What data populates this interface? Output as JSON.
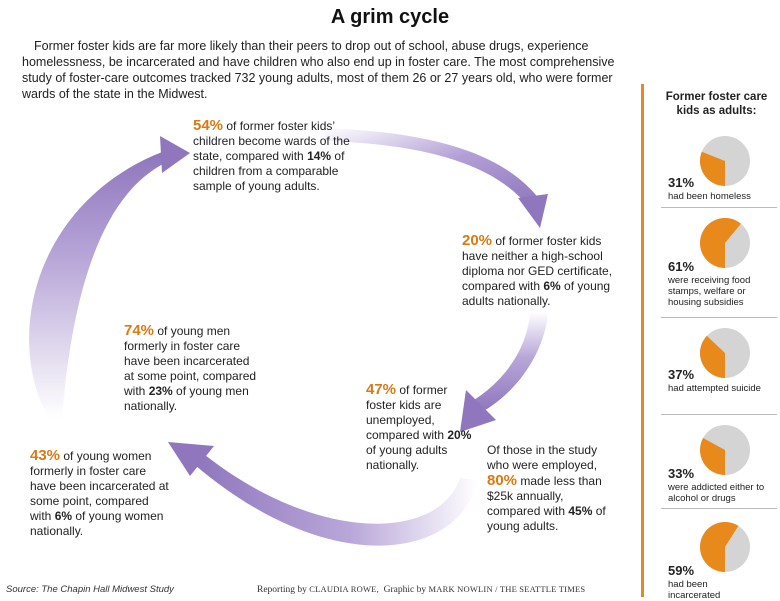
{
  "title": "A grim cycle",
  "intro": "Former foster kids are far more likely than their peers to drop out of school, abuse drugs, experience homelessness, be incarcerated and have children who also end up in foster care. The most comprehensive study of foster-care outcomes tracked 732 young adults, most of them 26 or 27 years old, who were former wards of the state in the Midwest.",
  "cycle": {
    "s1": {
      "big": "54%",
      "pre": " of former foster kids’ children become wards of the state, compared with ",
      "b": "14%",
      "post": " of children from a comparable sample of young adults."
    },
    "s2": {
      "big": "20%",
      "pre": " of former foster kids have neither a high-school diploma nor GED certificate, compared with ",
      "b": "6%",
      "post": " of young adults nationally."
    },
    "s3": {
      "big": "47%",
      "pre": " of former foster kids are unemployed, compared with ",
      "b": "20%",
      "post": " of young adults nationally."
    },
    "s4": {
      "pre": "Of those in the study who were employed, ",
      "big": "80%",
      "mid": " made less than $25k annually, compared with ",
      "b": "45%",
      "post": " of young adults."
    },
    "s5": {
      "big": "74%",
      "pre": " of young men formerly in foster care have been incarcerated at some point, compared with ",
      "b": "23%",
      "post": " of young men nationally."
    },
    "s6": {
      "big": "43%",
      "pre": " of young women formerly in foster care have been incarcerated at some point, compared with ",
      "b": "6%",
      "post": " of young women nationally."
    }
  },
  "colors": {
    "arrow": "#9b84c4",
    "accent": "#e8891c",
    "pie_rest": "#d4d4d4"
  },
  "sidebar": {
    "heading": "Former foster care kids as adults:",
    "items": [
      {
        "pct": "31%",
        "fraction": 0.31,
        "label": "had been homeless"
      },
      {
        "pct": "61%",
        "fraction": 0.61,
        "label": "were receiving food stamps, welfare or housing subsidies"
      },
      {
        "pct": "37%",
        "fraction": 0.37,
        "label": "had attempted suicide"
      },
      {
        "pct": "33%",
        "fraction": 0.33,
        "label": "were addicted either to alcohol or drugs"
      },
      {
        "pct": "59%",
        "fraction": 0.59,
        "label": "had been incarcerated"
      }
    ]
  },
  "source": "Source: The Chapin Hall Midwest Study",
  "credit": {
    "reporting": "Reporting by ",
    "reporter": "Claudia Rowe,",
    "graphic": "Graphic by ",
    "artist": "Mark Nowlin / The Seattle Times"
  }
}
